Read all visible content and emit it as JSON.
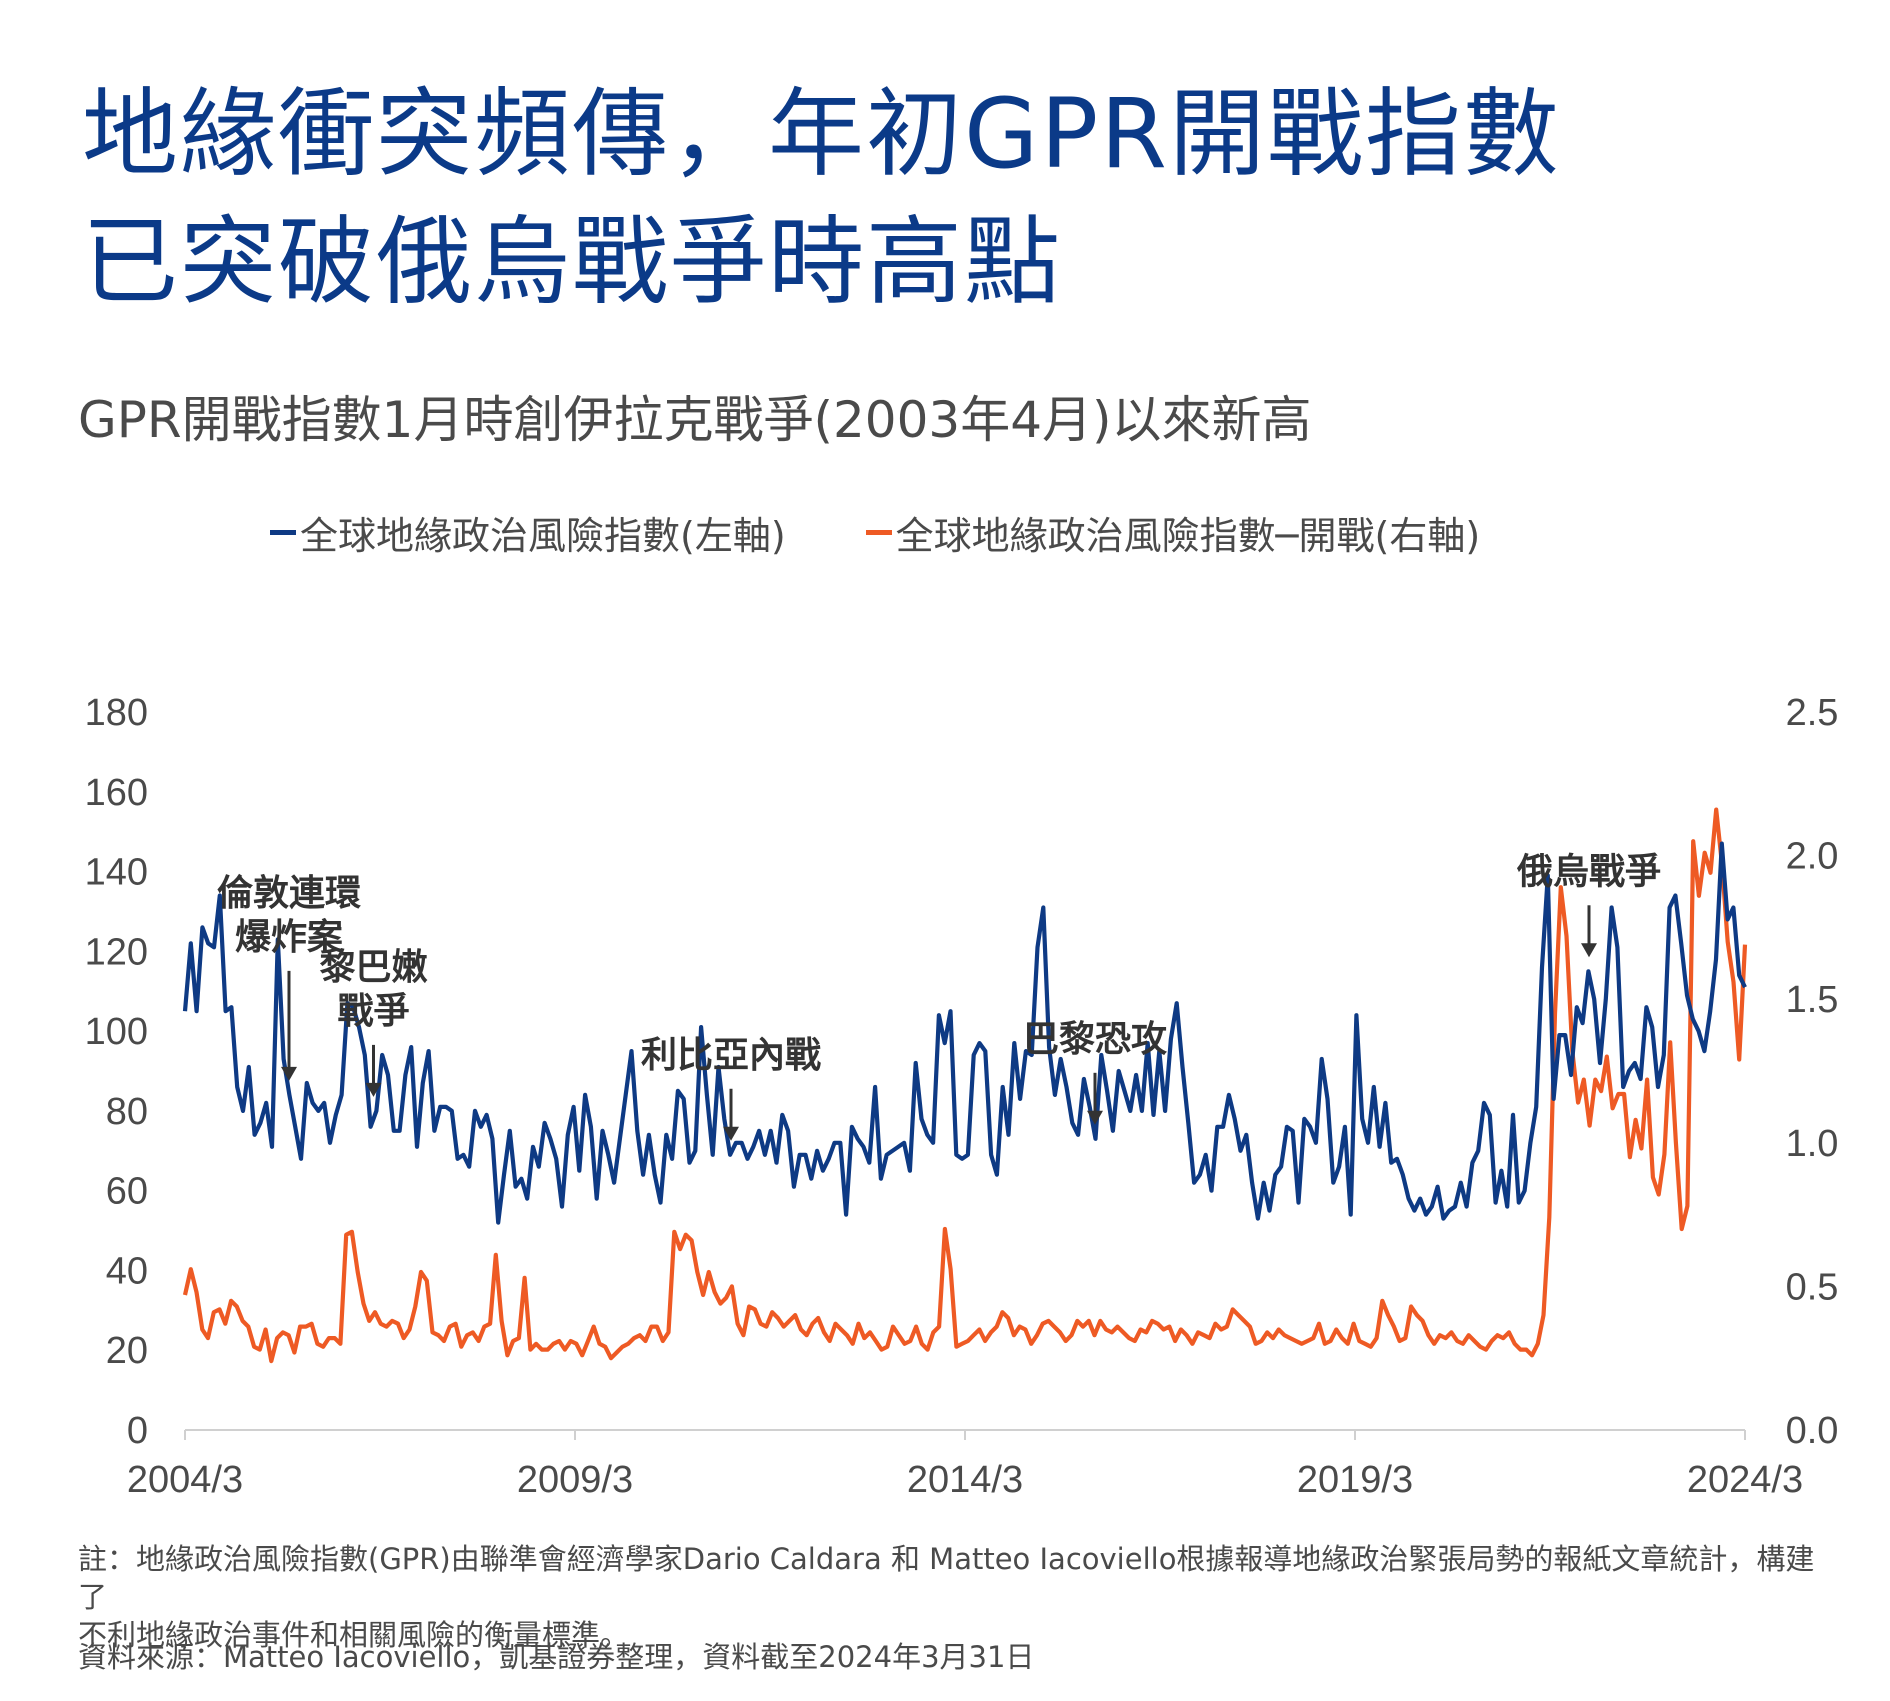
{
  "title": {
    "line1": "地緣衝突頻傳，年初GPR開戰指數",
    "line2": "已突破俄烏戰爭時高點"
  },
  "subtitle": "GPR開戰指數1月時創伊拉克戰爭(2003年4月)以來新高",
  "legend": {
    "left_label": "全球地緣政治風險指數(左軸)",
    "right_label": "全球地緣政治風險指數─開戰(右軸)"
  },
  "colors": {
    "title": "#0b3a88",
    "gpr": "#0e3a84",
    "gpr_war": "#ee5a24",
    "text": "#4a4a4a"
  },
  "chart_data": {
    "type": "line",
    "x_start": "2004/3",
    "x_end": "2024/3",
    "x_ticks": [
      "2004/3",
      "2009/3",
      "2014/3",
      "2019/3",
      "2024/3"
    ],
    "ylim_left": [
      0,
      180
    ],
    "yticks_left": [
      "0",
      "20",
      "40",
      "60",
      "80",
      "100",
      "120",
      "140",
      "160",
      "180"
    ],
    "ylim_right": [
      0.0,
      2.5
    ],
    "yticks_right": [
      "0.0",
      "0.5",
      "1.0",
      "1.5",
      "2.0",
      "2.5"
    ],
    "grid": false,
    "legend_position": "top",
    "series": [
      {
        "name": "全球地緣政治風險指數(左軸)",
        "axis": "left",
        "color": "#0e3a84",
        "values": [
          105,
          122,
          105,
          126,
          122,
          121,
          134,
          105,
          106,
          86,
          80,
          91,
          74,
          77,
          82,
          71,
          123,
          93,
          84,
          76,
          68,
          87,
          82,
          80,
          82,
          72,
          79,
          84,
          107,
          106,
          101,
          94,
          76,
          80,
          94,
          89,
          75,
          75,
          89,
          96,
          71,
          87,
          95,
          75,
          81,
          81,
          80,
          68,
          69,
          66,
          80,
          76,
          79,
          73,
          52,
          64,
          75,
          61,
          63,
          58,
          71,
          66,
          77,
          73,
          68,
          56,
          74,
          81,
          65,
          84,
          76,
          58,
          75,
          69,
          62,
          73,
          84,
          95,
          75,
          64,
          74,
          64,
          57,
          74,
          68,
          85,
          83,
          67,
          70,
          101,
          84,
          69,
          91,
          78,
          69,
          72,
          72,
          68,
          71,
          75,
          69,
          75,
          67,
          79,
          75,
          61,
          69,
          69,
          63,
          70,
          65,
          68,
          72,
          72,
          54,
          76,
          73,
          71,
          67,
          86,
          63,
          69,
          70,
          71,
          72,
          65,
          92,
          78,
          74,
          72,
          104,
          97,
          105,
          69,
          68,
          69,
          94,
          97,
          95,
          69,
          64,
          86,
          74,
          97,
          83,
          95,
          94,
          121,
          131,
          96,
          84,
          93,
          86,
          77,
          74,
          88,
          81,
          73,
          94,
          85,
          75,
          90,
          85,
          80,
          89,
          80,
          97,
          79,
          95,
          80,
          98,
          107,
          91,
          77,
          62,
          64,
          69,
          60,
          76,
          76,
          84,
          78,
          70,
          74,
          62,
          53,
          62,
          55,
          64,
          66,
          76,
          75,
          57,
          78,
          76,
          72,
          93,
          83,
          62,
          66,
          76,
          54,
          104,
          78,
          72,
          86,
          71,
          82,
          67,
          68,
          64,
          58,
          55,
          58,
          54,
          56,
          61,
          53,
          55,
          56,
          62,
          56,
          67,
          70,
          82,
          79,
          57,
          65,
          56,
          79,
          57,
          60,
          72,
          81,
          116,
          139,
          83,
          99,
          99,
          89,
          106,
          102,
          115,
          108,
          92,
          108,
          131,
          121,
          86,
          90,
          92,
          88,
          106,
          101,
          86,
          94,
          131,
          134,
          122,
          109,
          103,
          100,
          95,
          105,
          118,
          147,
          128,
          131,
          114,
          111
        ],
        "values_note": ""
      },
      {
        "name": "全球地緣政治風險指數─開戰(右軸)",
        "axis": "right",
        "color": "#ee5a24",
        "values": [
          0.47,
          0.56,
          0.48,
          0.35,
          0.32,
          0.41,
          0.42,
          0.37,
          0.45,
          0.43,
          0.38,
          0.36,
          0.29,
          0.28,
          0.35,
          0.24,
          0.32,
          0.34,
          0.33,
          0.27,
          0.36,
          0.36,
          0.37,
          0.3,
          0.29,
          0.32,
          0.32,
          0.3,
          0.68,
          0.69,
          0.55,
          0.44,
          0.38,
          0.41,
          0.37,
          0.36,
          0.38,
          0.37,
          0.32,
          0.35,
          0.43,
          0.55,
          0.52,
          0.34,
          0.33,
          0.31,
          0.36,
          0.37,
          0.29,
          0.33,
          0.34,
          0.31,
          0.36,
          0.37,
          0.61,
          0.38,
          0.26,
          0.31,
          0.32,
          0.53,
          0.28,
          0.3,
          0.28,
          0.28,
          0.3,
          0.31,
          0.28,
          0.31,
          0.3,
          0.26,
          0.31,
          0.36,
          0.3,
          0.29,
          0.25,
          0.27,
          0.29,
          0.3,
          0.32,
          0.33,
          0.31,
          0.36,
          0.36,
          0.31,
          0.34,
          0.69,
          0.63,
          0.68,
          0.66,
          0.55,
          0.47,
          0.55,
          0.48,
          0.44,
          0.46,
          0.5,
          0.37,
          0.33,
          0.43,
          0.42,
          0.37,
          0.36,
          0.41,
          0.39,
          0.36,
          0.38,
          0.4,
          0.35,
          0.33,
          0.37,
          0.39,
          0.34,
          0.31,
          0.37,
          0.35,
          0.33,
          0.3,
          0.37,
          0.32,
          0.34,
          0.31,
          0.28,
          0.29,
          0.36,
          0.33,
          0.3,
          0.31,
          0.36,
          0.3,
          0.28,
          0.34,
          0.36,
          0.7,
          0.56,
          0.29,
          0.3,
          0.31,
          0.33,
          0.35,
          0.31,
          0.34,
          0.36,
          0.41,
          0.39,
          0.33,
          0.36,
          0.35,
          0.3,
          0.33,
          0.37,
          0.38,
          0.36,
          0.34,
          0.31,
          0.33,
          0.38,
          0.36,
          0.38,
          0.33,
          0.38,
          0.35,
          0.34,
          0.36,
          0.34,
          0.32,
          0.31,
          0.35,
          0.34,
          0.38,
          0.37,
          0.35,
          0.36,
          0.31,
          0.35,
          0.33,
          0.3,
          0.34,
          0.33,
          0.32,
          0.37,
          0.35,
          0.36,
          0.42,
          0.4,
          0.38,
          0.36,
          0.3,
          0.31,
          0.34,
          0.32,
          0.35,
          0.33,
          0.32,
          0.31,
          0.3,
          0.31,
          0.32,
          0.37,
          0.3,
          0.31,
          0.35,
          0.32,
          0.3,
          0.37,
          0.31,
          0.3,
          0.29,
          0.32,
          0.45,
          0.4,
          0.36,
          0.31,
          0.32,
          0.43,
          0.4,
          0.38,
          0.33,
          0.3,
          0.33,
          0.32,
          0.34,
          0.31,
          0.3,
          0.33,
          0.31,
          0.29,
          0.28,
          0.31,
          0.33,
          0.32,
          0.34,
          0.3,
          0.28,
          0.28,
          0.26,
          0.3,
          0.4,
          0.74,
          1.45,
          1.89,
          1.72,
          1.32,
          1.14,
          1.22,
          1.06,
          1.22,
          1.18,
          1.3,
          1.12,
          1.17,
          1.17,
          0.95,
          1.08,
          0.98,
          1.22,
          0.88,
          0.82,
          0.96,
          1.35,
          1.0,
          0.7,
          0.78,
          2.05,
          1.86,
          2.01,
          1.94,
          2.16,
          1.97,
          1.7,
          1.56,
          1.29,
          1.69
        ],
        "values_note": ""
      }
    ],
    "annotations": [
      {
        "label": "倫敦連環\n爆炸案",
        "lines": [
          "倫敦連環",
          "爆炸案"
        ],
        "x": "2005/7",
        "series": 0
      },
      {
        "label": "黎巴嫩\n戰爭",
        "lines": [
          "黎巴嫩",
          "戰爭"
        ],
        "x": "2006/8",
        "series": 0
      },
      {
        "label": "利比亞內戰",
        "lines": [
          "利比亞內戰"
        ],
        "x": "2011/3",
        "series": 0
      },
      {
        "label": "巴黎恐攻",
        "lines": [
          "巴黎恐攻"
        ],
        "x": "2015/11",
        "series": 0
      },
      {
        "label": "俄烏戰爭",
        "lines": [
          "俄烏戰爭"
        ],
        "x": "2022/3",
        "series": 0
      }
    ]
  },
  "notes": {
    "line1": "註：地緣政治風險指數(GPR)由聯準會經濟學家Dario Caldara 和 Matteo Iacoviello根據報導地緣政治緊張局勢的報紙文章統計，構建了",
    "line2": "不利地緣政治事件和相關風險的衡量標準。"
  },
  "source": "資料來源：Matteo Iacoviello，凱基證券整理，資料截至2024年3月31日"
}
